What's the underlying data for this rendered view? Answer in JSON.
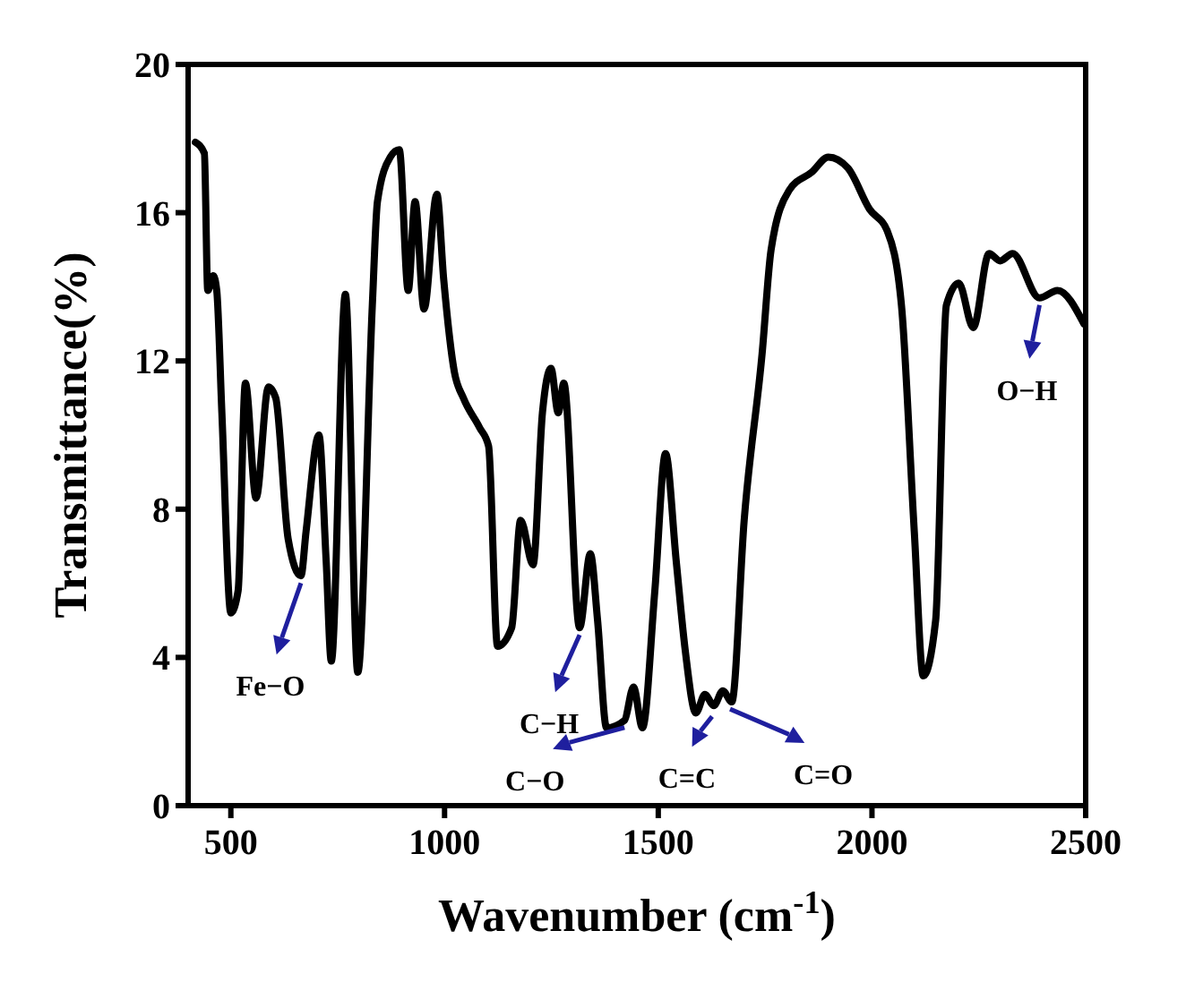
{
  "chart_data": {
    "type": "line",
    "xlabel": "Wavenumber (cm$^{-1}$)",
    "ylabel": "Transmittance(%)",
    "xlim": [
      400,
      2500
    ],
    "xticks": [
      500,
      1000,
      1500,
      2000,
      2500
    ],
    "ylim": [
      0,
      20
    ],
    "yticks": [
      0,
      4,
      8,
      12,
      16,
      20
    ],
    "grid": false,
    "marker": "none",
    "line_style": "solid",
    "series": [
      {
        "color": "#000000",
        "x": [
          417,
          438,
          446,
          459,
          467,
          479,
          500,
          517,
          534,
          559,
          588,
          605,
          634,
          664,
          676,
          706,
          723,
          735,
          768,
          797,
          831,
          843,
          873,
          894,
          915,
          931,
          952,
          982,
          998,
          1023,
          1044,
          1082,
          1103,
          1124,
          1157,
          1178,
          1207,
          1229,
          1249,
          1266,
          1279,
          1316,
          1341,
          1358,
          1379,
          1421,
          1442,
          1463,
          1492,
          1517,
          1542,
          1563,
          1588,
          1609,
          1630,
          1651,
          1672,
          1701,
          1743,
          1764,
          1806,
          1860,
          1898,
          1944,
          1994,
          2036,
          2069,
          2099,
          2120,
          2149,
          2174,
          2203,
          2237,
          2274,
          2300,
          2329,
          2392,
          2434,
          2496
        ],
        "values": [
          17.9,
          17.6,
          13.9,
          14.3,
          13.9,
          10.6,
          5.2,
          5.8,
          11.4,
          8.3,
          11.3,
          11.0,
          7.2,
          6.2,
          7.4,
          10.0,
          6.6,
          3.9,
          13.8,
          3.6,
          13.5,
          16.3,
          17.5,
          17.7,
          13.9,
          16.3,
          13.4,
          16.5,
          14.2,
          11.7,
          11.0,
          10.2,
          9.7,
          4.3,
          4.8,
          7.7,
          6.5,
          10.6,
          11.8,
          10.6,
          11.4,
          4.8,
          6.8,
          5.0,
          2.1,
          2.3,
          3.2,
          2.1,
          5.8,
          9.5,
          6.6,
          4.2,
          2.5,
          3.0,
          2.7,
          3.1,
          2.8,
          7.7,
          12.2,
          15.0,
          16.6,
          17.1,
          17.5,
          17.2,
          16.1,
          15.5,
          13.5,
          7.4,
          3.5,
          5.0,
          13.5,
          14.1,
          12.9,
          14.9,
          14.7,
          14.9,
          13.7,
          13.9,
          13.0
        ]
      }
    ],
    "annotations": [
      {
        "text": "Fe−O",
        "x": 664,
        "y": 6.2
      },
      {
        "text": "C−H",
        "x": 1316,
        "y": 4.8
      },
      {
        "text": "C−O",
        "x": 1421,
        "y": 2.3
      },
      {
        "text": "C=C",
        "x": 1626,
        "y": 2.6
      },
      {
        "text": "C=O",
        "x": 1668,
        "y": 2.8
      },
      {
        "text": "O−H",
        "x": 2392,
        "y": 13.7
      }
    ]
  }
}
